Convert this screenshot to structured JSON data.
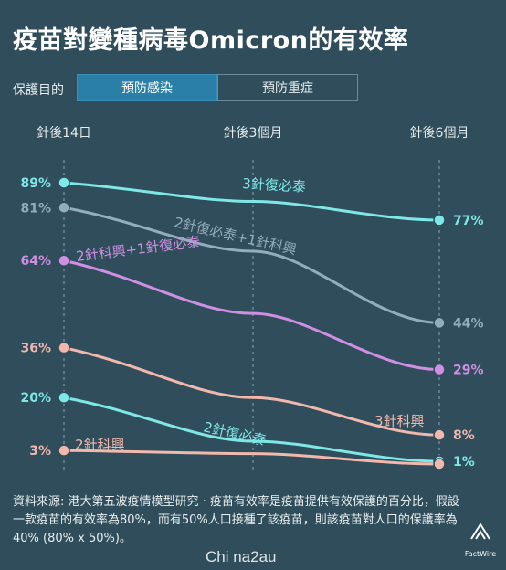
{
  "title": "疫苗對變種病毒Omicron的有效率",
  "selector": {
    "label": "保護目的",
    "options": [
      "預防感染",
      "預防重症"
    ],
    "selected": "預防感染"
  },
  "chart_data": {
    "type": "line",
    "x": [
      "針後14日",
      "針後3個月",
      "針後6個月"
    ],
    "ylim": [
      0,
      100
    ],
    "grid": "vertical dashed at each x",
    "series": [
      {
        "name": "3針復必泰",
        "color": "#7ee8e8",
        "start": 89,
        "end": 77,
        "values": [
          89,
          83,
          77
        ]
      },
      {
        "name": "2針復必泰+1針科興",
        "color": "#93adbb",
        "start": 81,
        "end": 44,
        "values": [
          81,
          67,
          44
        ]
      },
      {
        "name": "2針科興+1針復必泰",
        "color": "#cf8fe3",
        "start": 64,
        "end": 29,
        "values": [
          64,
          47,
          29
        ]
      },
      {
        "name": "3針科興",
        "color": "#f2b8ad",
        "start": 36,
        "end": 8,
        "values": [
          36,
          20,
          8
        ]
      },
      {
        "name": "2針復必泰",
        "color": "#7ee8e8",
        "start": 20,
        "end": 1,
        "values": [
          20,
          6,
          1
        ]
      },
      {
        "name": "2針科興",
        "color": "#f2b8ad",
        "start": 3,
        "end": 1,
        "values": [
          3,
          2,
          1
        ]
      }
    ],
    "start_labels": [
      "89%",
      "81%",
      "64%",
      "36%",
      "20%",
      "3%"
    ],
    "end_labels": [
      "77%",
      "44%",
      "29%",
      "8%",
      "1%"
    ]
  },
  "footnote": "資料來源: 港大第五波疫情模型研究 · 疫苗有效率是疫苗提供有效保護的百分比，假設一款疫苗的有效率為80%，而有50%人口接種了該疫苗，則該疫苗對人口的保護率為40% (80% x 50%)。",
  "logo": {
    "icon": "factwire-logo-icon",
    "text": "FactWire"
  },
  "watermark": "Chi na2au"
}
